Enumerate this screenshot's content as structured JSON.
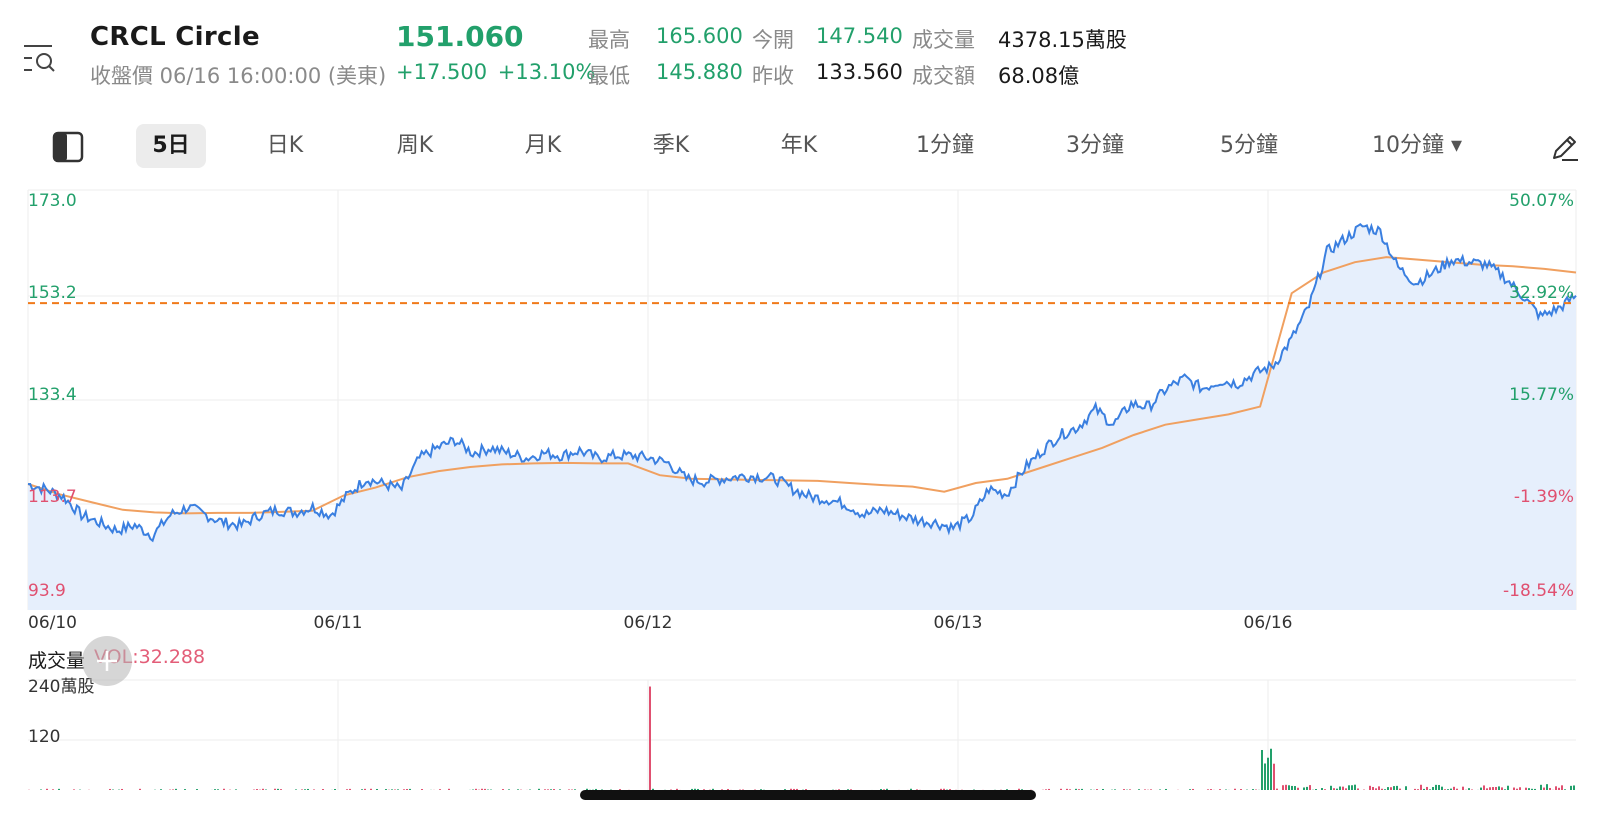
{
  "header": {
    "ticker": "CRCL  Circle",
    "status": "收盤價 06/16 16:00:00 (美東)",
    "price": "151.060",
    "change": "+17.500 +13.10%"
  },
  "stats": {
    "high_label": "最高",
    "high": "165.600",
    "open_label": "今開",
    "open": "147.540",
    "volume_label": "成交量",
    "volume": "4378.15萬股",
    "low_label": "最低",
    "low": "145.880",
    "prev_close_label": "昨收",
    "prev_close": "133.560",
    "turnover_label": "成交額",
    "turnover": "68.08億"
  },
  "tabs": [
    {
      "label": "5日",
      "active": true
    },
    {
      "label": "日K"
    },
    {
      "label": "周K"
    },
    {
      "label": "月K"
    },
    {
      "label": "季K"
    },
    {
      "label": "年K"
    },
    {
      "label": "1分鐘"
    },
    {
      "label": "3分鐘"
    },
    {
      "label": "5分鐘"
    },
    {
      "label": "10分鐘 ▾"
    }
  ],
  "icons": {
    "menu": "menu-search-icon",
    "layout": "layout-toggle-icon",
    "draw": "pencil-icon",
    "plus": "plus-icon"
  },
  "colors": {
    "price_line": "#3a7fe0",
    "avg_line": "#f0a060",
    "area_fill": "#e6effc",
    "up": "#22a06b",
    "down": "#e05070",
    "ref_line": "#f07a1a"
  },
  "volume_panel": {
    "label": "成交量",
    "vol_value": "VOL:32.288",
    "y_ticks": [
      "240萬股",
      "120"
    ]
  },
  "chart_data": {
    "type": "line",
    "x_labels": [
      "06/10",
      "06/11",
      "06/12",
      "06/13",
      "06/16"
    ],
    "y_ticks": [
      "173.0",
      "153.2",
      "133.4",
      "113.7",
      "93.9"
    ],
    "y_pct_ticks": [
      "50.07%",
      "32.92%",
      "15.77%",
      "-1.39%",
      "-18.54%"
    ],
    "ylim": [
      93.9,
      173.0
    ],
    "ref_line": 151.06,
    "price": [
      116.0,
      115.0,
      113.5,
      110.0,
      108.5,
      107.0,
      108.0,
      106.0,
      110.0,
      111.5,
      110.0,
      108.5,
      108.0,
      110.0,
      111.0,
      110.5,
      111.5,
      110.0,
      114.0,
      117.0,
      116.0,
      115.0,
      121.0,
      123.0,
      124.5,
      122.0,
      123.0,
      122.0,
      121.0,
      122.0,
      121.5,
      122.5,
      121.0,
      121.5,
      121.5,
      121.0,
      120.0,
      117.0,
      116.5,
      117.0,
      117.5,
      117.5,
      117.0,
      115.0,
      113.5,
      113.0,
      112.0,
      110.0,
      111.0,
      110.0,
      109.0,
      108.5,
      107.5,
      109.5,
      115.0,
      114.0,
      119.0,
      122.5,
      125.5,
      127.0,
      130.5,
      127.5,
      131.5,
      131.0,
      134.5,
      136.5,
      134.5,
      136.0,
      135.5,
      137.5,
      139.0,
      144.0,
      150.5,
      161.0,
      163.5,
      166.0,
      165.0,
      158.0,
      155.0,
      157.0,
      159.5,
      159.0,
      158.5,
      156.0,
      152.5,
      148.5,
      150.0,
      152.5
    ],
    "avg": [
      116.0,
      114.0,
      112.5,
      111.0,
      110.5,
      110.3,
      110.4,
      110.4,
      110.6,
      110.8,
      113.8,
      115.3,
      117.3,
      118.5,
      119.3,
      119.8,
      120.0,
      120.1,
      120.0,
      120.0,
      117.7,
      117.0,
      116.9,
      116.8,
      116.7,
      116.6,
      116.2,
      115.8,
      115.5,
      114.5,
      116.2,
      117.0,
      119.0,
      121.0,
      123.0,
      125.5,
      127.5,
      128.5,
      129.5,
      131.0,
      153.0,
      157.0,
      159.0,
      160.0,
      159.5,
      159.0,
      158.5,
      158.2,
      157.7,
      157.0
    ],
    "volume": {
      "ylim": [
        0,
        240
      ],
      "spike_06_12_open": 226,
      "spike_06_16_open": 95
    }
  }
}
